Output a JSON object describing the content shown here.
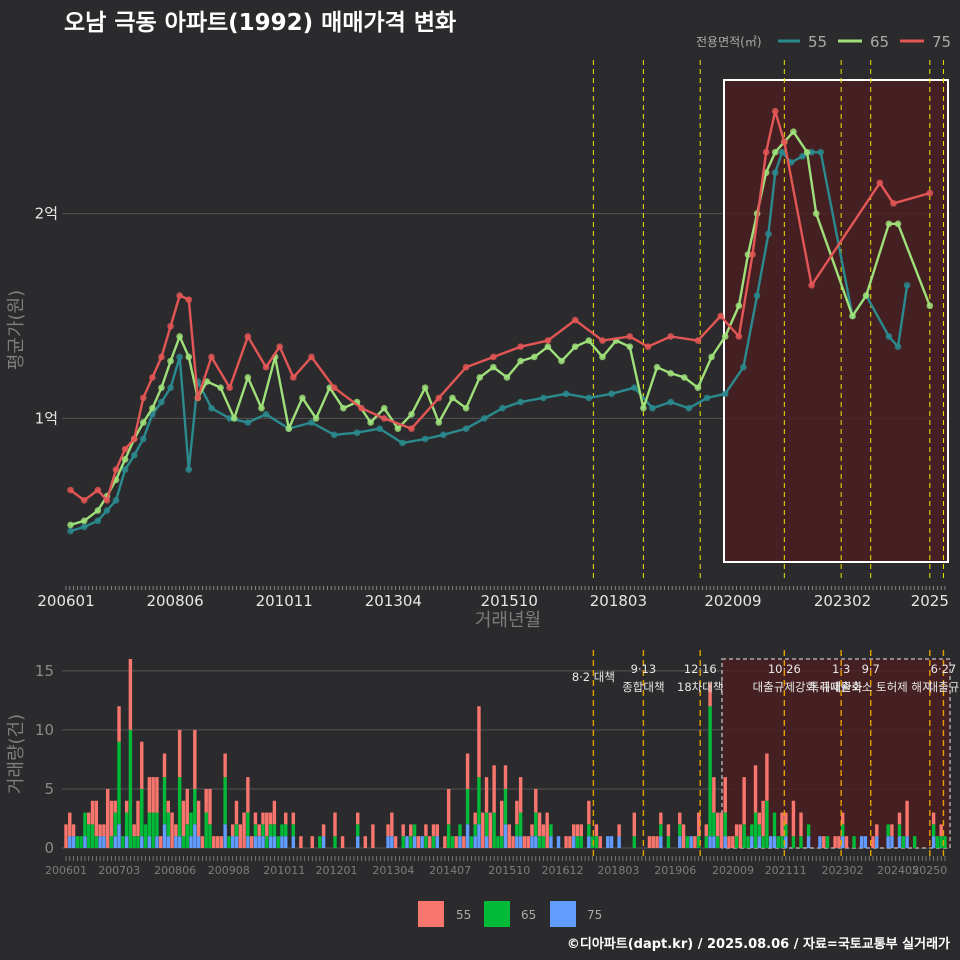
{
  "colors": {
    "s55": "#2a8a8e",
    "s65": "#9fe07a",
    "s75": "#e35656",
    "b55": "#f8766d",
    "b65": "#00ba38",
    "b75": "#619cff",
    "vline": "#e6e600",
    "vline_bar": "#e69f00"
  },
  "chart_data": [
    {
      "type": "line",
      "title": "오남 극동 아파트(1992) 매매가격 변화",
      "xlabel": "거래년월",
      "ylabel": "평균가(원)",
      "ylim": [
        0.25,
        2.75
      ],
      "y_unit": "억",
      "x_ticks": [
        "200601",
        "200806",
        "201011",
        "201304",
        "201510",
        "201803",
        "202009",
        "202302",
        "2025"
      ],
      "y_ticks": [
        {
          "v": 1,
          "label": "1억"
        },
        {
          "v": 2,
          "label": "2억"
        }
      ],
      "legend_title": "전용면적(㎡)",
      "legend": [
        "55",
        "65",
        "75"
      ],
      "policy_lines": [
        2017.6,
        2018.7,
        2019.95,
        2021.8,
        2023.05,
        2023.7,
        2025.0,
        2025.3
      ],
      "highlight_range": [
        2020.7,
        2025.35
      ],
      "series": [
        {
          "name": "55",
          "x": [
            2006.1,
            2006.4,
            2006.7,
            2006.9,
            2007.1,
            2007.3,
            2007.5,
            2007.7,
            2007.9,
            2008.1,
            2008.3,
            2008.5,
            2008.7,
            2008.9,
            2009.2,
            2009.6,
            2010.0,
            2010.4,
            2010.9,
            2011.4,
            2011.9,
            2012.4,
            2012.9,
            2013.4,
            2013.9,
            2014.3,
            2014.8,
            2015.2,
            2015.6,
            2016.0,
            2016.5,
            2017.0,
            2017.5,
            2018.0,
            2018.5,
            2018.9,
            2019.3,
            2019.7,
            2020.1,
            2020.5,
            2020.9,
            2021.2,
            2021.45,
            2021.6,
            2021.75,
            2021.95,
            2022.2,
            2022.4,
            2022.6,
            2023.3,
            2023.6,
            2024.1,
            2024.3,
            2024.5
          ],
          "values": [
            0.45,
            0.47,
            0.5,
            0.55,
            0.6,
            0.75,
            0.82,
            0.9,
            1.02,
            1.08,
            1.15,
            1.3,
            0.75,
            1.18,
            1.05,
            1.0,
            0.98,
            1.02,
            0.95,
            0.98,
            0.92,
            0.93,
            0.95,
            0.88,
            0.9,
            0.92,
            0.95,
            1.0,
            1.05,
            1.08,
            1.1,
            1.12,
            1.1,
            1.12,
            1.15,
            1.05,
            1.08,
            1.05,
            1.1,
            1.12,
            1.25,
            1.6,
            1.9,
            2.2,
            2.3,
            2.25,
            2.28,
            2.3,
            2.3,
            1.5,
            1.6,
            1.4,
            1.35,
            1.65
          ]
        },
        {
          "name": "65",
          "x": [
            2006.1,
            2006.4,
            2006.7,
            2006.9,
            2007.1,
            2007.3,
            2007.5,
            2007.7,
            2007.9,
            2008.1,
            2008.3,
            2008.5,
            2008.7,
            2008.9,
            2009.1,
            2009.4,
            2009.7,
            2010.0,
            2010.3,
            2010.6,
            2010.9,
            2011.2,
            2011.5,
            2011.8,
            2012.1,
            2012.4,
            2012.7,
            2013.0,
            2013.3,
            2013.6,
            2013.9,
            2014.2,
            2014.5,
            2014.8,
            2015.1,
            2015.4,
            2015.7,
            2016.0,
            2016.3,
            2016.6,
            2016.9,
            2017.2,
            2017.5,
            2017.8,
            2018.1,
            2018.4,
            2018.7,
            2019.0,
            2019.3,
            2019.6,
            2019.9,
            2020.2,
            2020.5,
            2020.8,
            2021.0,
            2021.2,
            2021.4,
            2021.6,
            2021.8,
            2022.0,
            2022.3,
            2022.5,
            2023.3,
            2023.6,
            2024.1,
            2024.3,
            2025.0
          ],
          "values": [
            0.48,
            0.5,
            0.55,
            0.62,
            0.7,
            0.8,
            0.9,
            0.98,
            1.05,
            1.15,
            1.28,
            1.4,
            1.3,
            1.1,
            1.18,
            1.15,
            1.0,
            1.2,
            1.05,
            1.3,
            0.95,
            1.1,
            1.0,
            1.15,
            1.05,
            1.08,
            0.98,
            1.05,
            0.95,
            1.02,
            1.15,
            0.98,
            1.1,
            1.05,
            1.2,
            1.25,
            1.2,
            1.28,
            1.3,
            1.35,
            1.28,
            1.35,
            1.38,
            1.3,
            1.38,
            1.35,
            1.05,
            1.25,
            1.22,
            1.2,
            1.15,
            1.3,
            1.4,
            1.55,
            1.8,
            2.0,
            2.2,
            2.3,
            2.35,
            2.4,
            2.3,
            2.0,
            1.5,
            1.6,
            1.95,
            1.95,
            1.55
          ]
        },
        {
          "name": "75",
          "x": [
            2006.1,
            2006.4,
            2006.7,
            2006.9,
            2007.1,
            2007.3,
            2007.5,
            2007.7,
            2007.9,
            2008.1,
            2008.3,
            2008.5,
            2008.7,
            2008.9,
            2009.2,
            2009.6,
            2010.0,
            2010.4,
            2010.7,
            2011.0,
            2011.4,
            2011.9,
            2012.5,
            2013.0,
            2013.6,
            2014.2,
            2014.8,
            2015.4,
            2016.0,
            2016.6,
            2017.2,
            2017.8,
            2018.4,
            2018.8,
            2019.3,
            2019.9,
            2020.4,
            2020.8,
            2021.1,
            2021.4,
            2021.6,
            2021.8,
            2022.4,
            2023.9,
            2024.2,
            2025.0
          ],
          "values": [
            0.65,
            0.6,
            0.65,
            0.6,
            0.75,
            0.85,
            0.9,
            1.1,
            1.2,
            1.3,
            1.45,
            1.6,
            1.58,
            1.1,
            1.3,
            1.15,
            1.4,
            1.25,
            1.35,
            1.2,
            1.3,
            1.15,
            1.05,
            1.0,
            0.95,
            1.1,
            1.25,
            1.3,
            1.35,
            1.38,
            1.48,
            1.38,
            1.4,
            1.35,
            1.4,
            1.38,
            1.5,
            1.4,
            1.8,
            2.3,
            2.5,
            2.35,
            1.65,
            2.15,
            2.05,
            2.1
          ]
        }
      ]
    },
    {
      "type": "bar",
      "ylabel": "거래량(건)",
      "ylim": [
        0,
        16
      ],
      "y_ticks": [
        0,
        5,
        10,
        15
      ],
      "x_ticks": [
        "200601",
        "200703",
        "200806",
        "200908",
        "201011",
        "201201",
        "201304",
        "201407",
        "201510",
        "201612",
        "201803",
        "201906",
        "202009",
        "202111",
        "202302",
        "202405",
        "20250"
      ],
      "legend": [
        "55",
        "65",
        "75"
      ],
      "annotations": [
        {
          "x": 2017.6,
          "top": "",
          "bottom": "8·2 대책"
        },
        {
          "x": 2018.7,
          "top": "9·13",
          "bottom": "종합대책"
        },
        {
          "x": 2019.95,
          "top": "12·16",
          "bottom": "18차대책"
        },
        {
          "x": 2021.8,
          "top": "10·26",
          "bottom": "대출규제강화"
        },
        {
          "x": 2023.05,
          "top": "1·3",
          "bottom": "규제완화"
        },
        {
          "x": 2023.7,
          "top": "9·7",
          "bottom": "특례대출축소 토허제 해지"
        },
        {
          "x": 2025.3,
          "top": "6·27",
          "bottom": "대출규"
        }
      ],
      "policy_lines": [
        2017.6,
        2018.7,
        2019.95,
        2021.8,
        2023.05,
        2023.7,
        2025.0,
        2025.3
      ],
      "highlight_range": [
        2020.7,
        2025.35
      ],
      "spikes": [
        [
          2006.9,
          5,
          0,
          0
        ],
        [
          2007.2,
          3,
          7,
          2
        ],
        [
          2007.4,
          6,
          10,
          0
        ],
        [
          2007.7,
          4,
          4,
          1
        ],
        [
          2007.9,
          3,
          3,
          0
        ],
        [
          2008.2,
          2,
          4,
          2
        ],
        [
          2008.5,
          4,
          5,
          1
        ],
        [
          2008.8,
          5,
          3,
          2
        ],
        [
          2009.1,
          2,
          3,
          0
        ],
        [
          2009.5,
          2,
          4,
          2
        ],
        [
          2010.0,
          3,
          2,
          1
        ],
        [
          2014.8,
          3,
          3,
          2
        ],
        [
          2015.1,
          6,
          4,
          2
        ],
        [
          2015.4,
          4,
          3,
          0
        ],
        [
          2015.7,
          2,
          3,
          2
        ],
        [
          2016.0,
          3,
          2,
          1
        ],
        [
          2020.2,
          2,
          11,
          1
        ],
        [
          2020.5,
          3,
          2,
          1
        ],
        [
          2020.9,
          4,
          2,
          0
        ],
        [
          2021.2,
          4,
          3,
          0
        ],
        [
          2021.4,
          4,
          4,
          0
        ],
        [
          2022.0,
          3,
          1,
          0
        ],
        [
          2024.5,
          3,
          0,
          1
        ]
      ]
    }
  ],
  "labels": {
    "title": "오남 극동 아파트(1992) 매매가격 변화",
    "legend_title": "전용면적(㎡)",
    "leg55": "55",
    "leg65": "65",
    "leg75": "75",
    "xlabel": "거래년월",
    "ylabel_top": "평균가(원)",
    "ylabel_bottom": "거래량(건)",
    "caption": "©디아파트(dapt.kr) / 2025.08.06 / 자료=국토교통부 실거래가"
  }
}
